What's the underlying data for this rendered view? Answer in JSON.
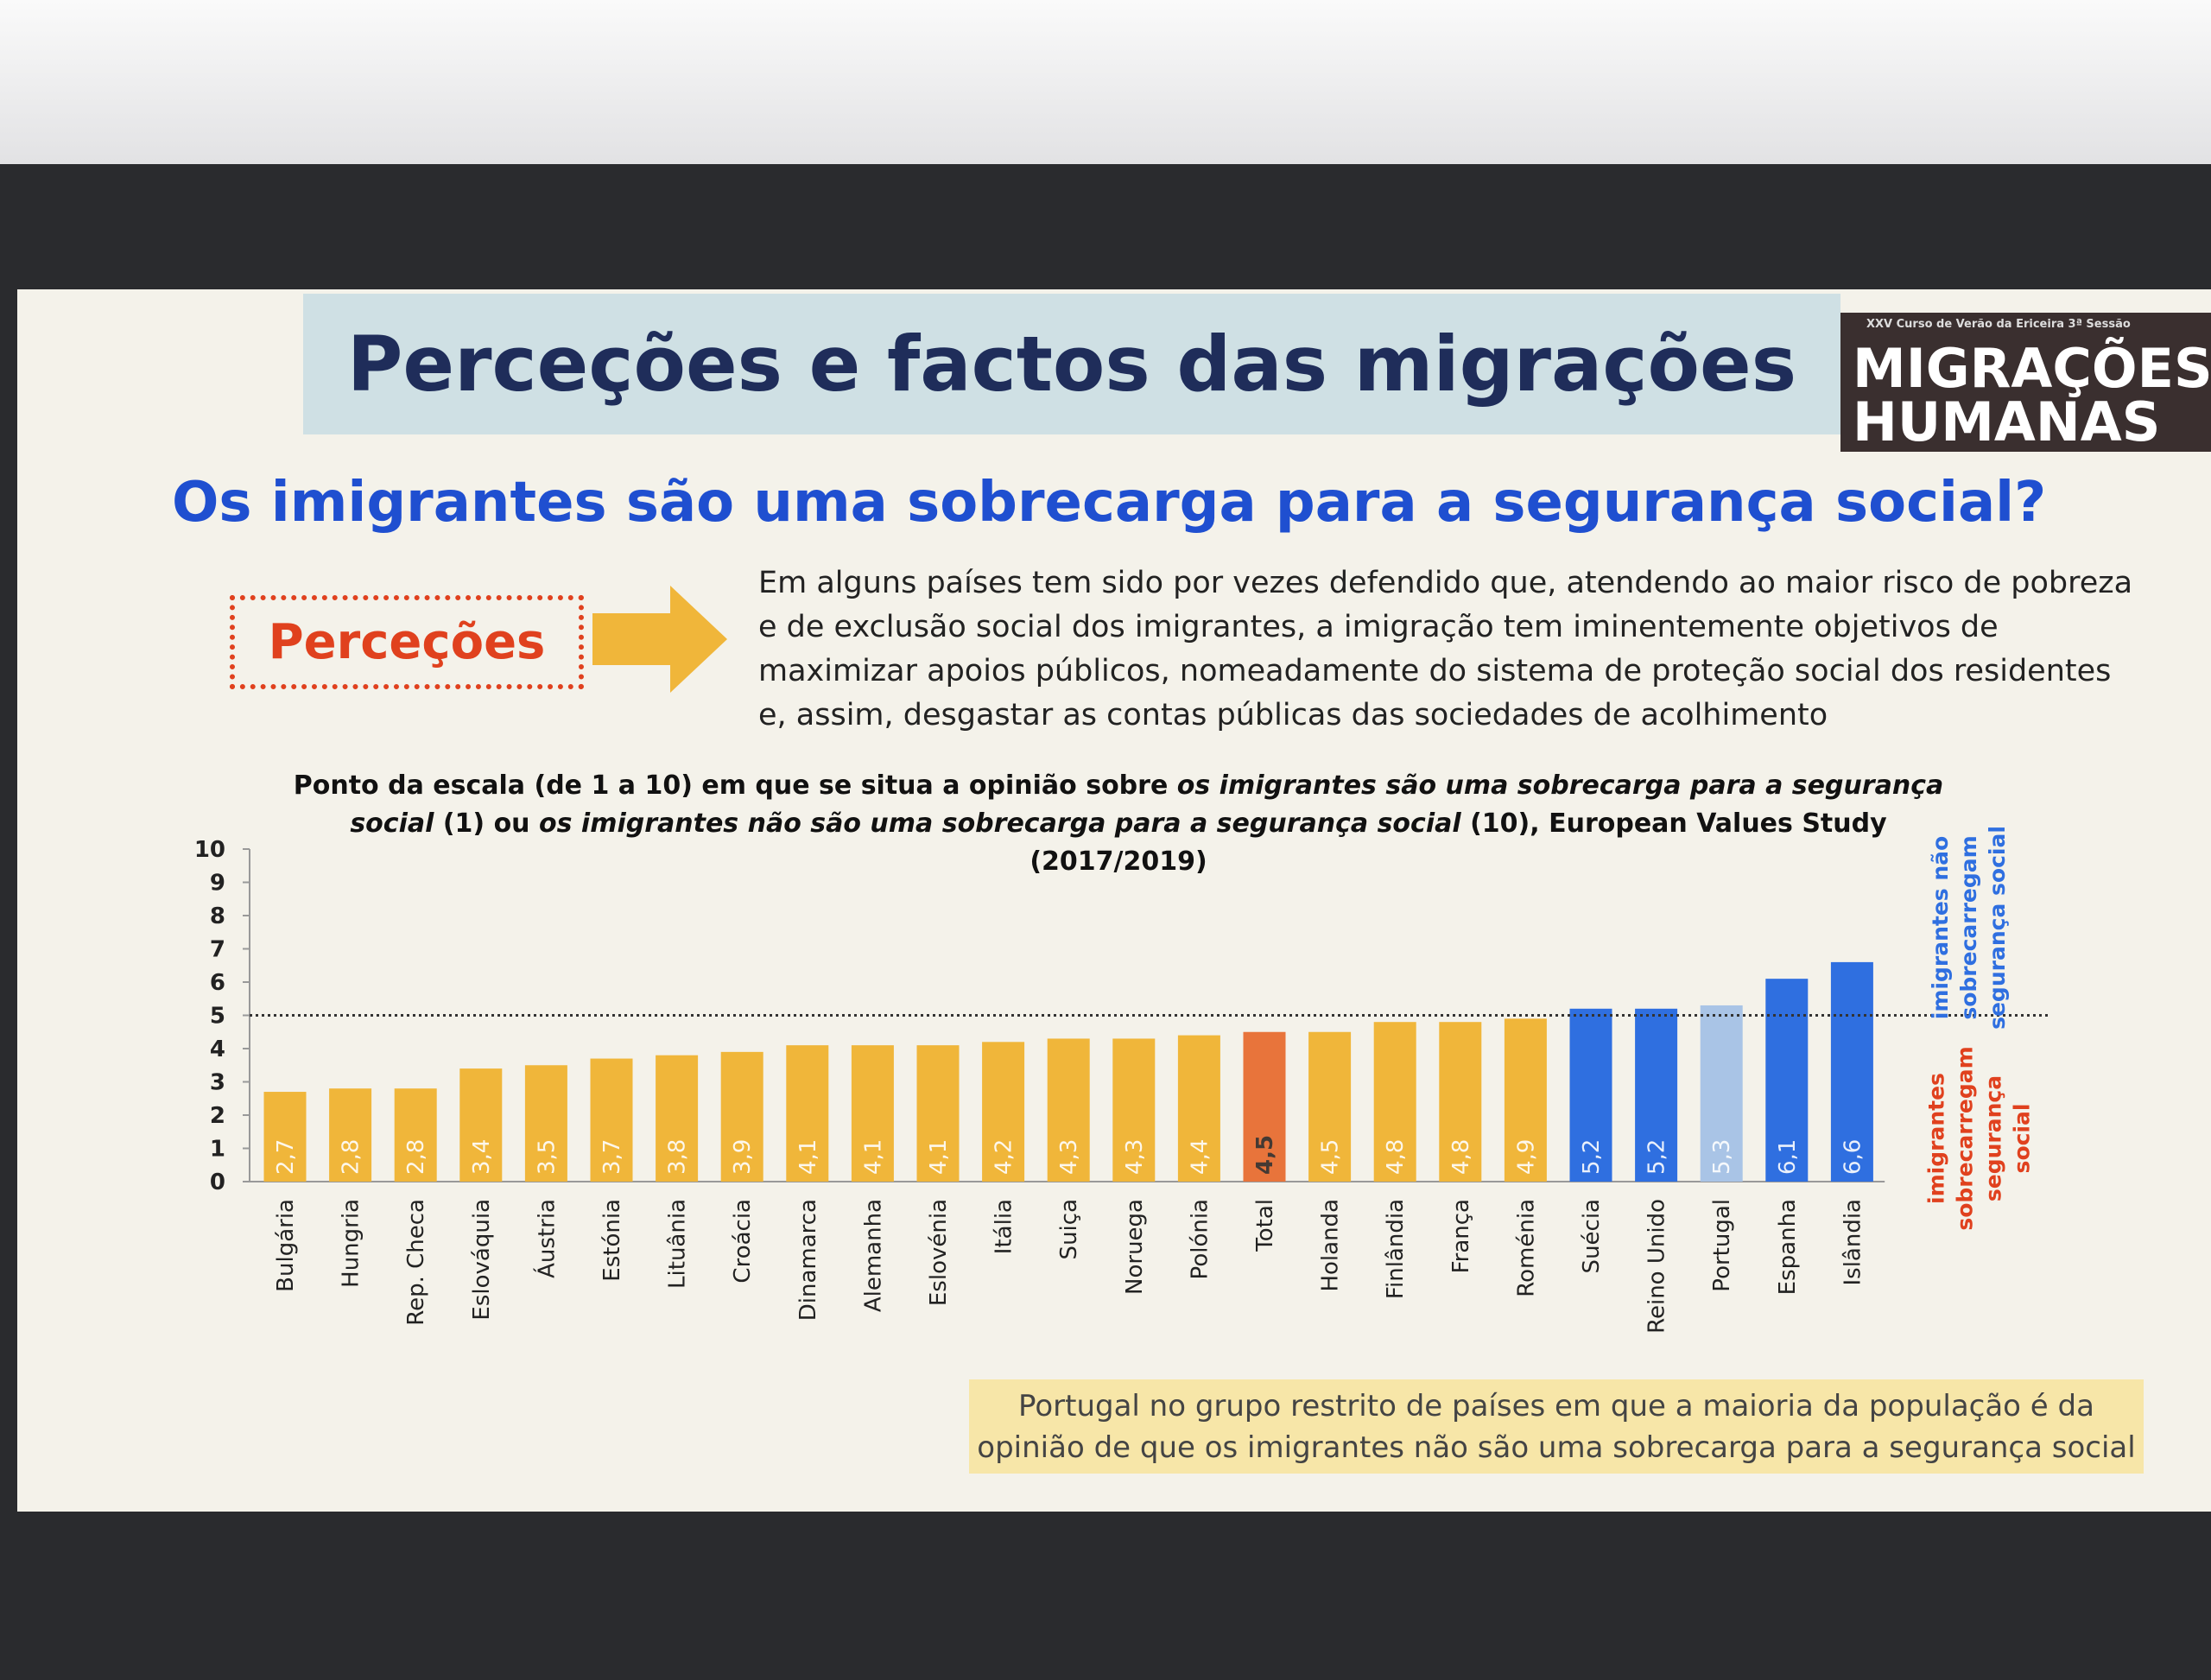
{
  "header": {
    "title": "Perceções e factos das migrações",
    "logo_small": "XXV Curso de Verão da Ericeira 3ª Sessão",
    "logo_line1": "MIGRAÇÕES",
    "logo_line2": "HUMANAS"
  },
  "subtitle": "Os imigrantes são uma sobrecarga para a segurança social?",
  "perception": {
    "label": "Perceções",
    "lines": [
      "Em alguns países tem sido por vezes defendido que, atendendo ao maior risco de pobreza",
      "e de exclusão social dos imigrantes, a imigração tem iminentemente objetivos de",
      "maximizar apoios públicos, nomeadamente do sistema de proteção social dos residentes",
      "e, assim, desgastar as contas públicas das sociedades de acolhimento"
    ]
  },
  "chart_data": {
    "type": "bar",
    "title": [
      "Ponto da escala (de 1 a 10) em que se situa a opinião sobre ",
      "os imigrantes são uma sobrecarga para a segurança",
      "social",
      " (1) ou ",
      "os imigrantes não são uma sobrecarga para a segurança social",
      " (10), European Values Study (2017/2019)"
    ],
    "categories": [
      "Bulgária",
      "Hungria",
      "Rep. Checa",
      "Eslováquia",
      "Áustria",
      "Estónia",
      "Lituânia",
      "Croácia",
      "Dinamarca",
      "Alemanha",
      "Eslovénia",
      "Itália",
      "Suiça",
      "Noruega",
      "Polónia",
      "Total",
      "Holanda",
      "Finlândia",
      "França",
      "Roménia",
      "Suécia",
      "Reino Unido",
      "Portugal",
      "Espanha",
      "Islândia"
    ],
    "values": [
      2.7,
      2.8,
      2.8,
      3.4,
      3.5,
      3.7,
      3.8,
      3.9,
      4.1,
      4.1,
      4.1,
      4.2,
      4.3,
      4.3,
      4.4,
      4.5,
      4.5,
      4.8,
      4.8,
      4.9,
      5.2,
      5.2,
      5.3,
      6.1,
      6.6
    ],
    "value_labels": [
      "2,7",
      "2,8",
      "2,8",
      "3,4",
      "3,5",
      "3,7",
      "3,8",
      "3,9",
      "4,1",
      "4,1",
      "4,1",
      "4,2",
      "4,3",
      "4,3",
      "4,4",
      "4,5",
      "4,5",
      "4,8",
      "4,8",
      "4,9",
      "5,2",
      "5,2",
      "5,3",
      "6,1",
      "6,6"
    ],
    "colors": [
      "#f0b63a",
      "#f0b63a",
      "#f0b63a",
      "#f0b63a",
      "#f0b63a",
      "#f0b63a",
      "#f0b63a",
      "#f0b63a",
      "#f0b63a",
      "#f0b63a",
      "#f0b63a",
      "#f0b63a",
      "#f0b63a",
      "#f0b63a",
      "#f0b63a",
      "#e8743b",
      "#f0b63a",
      "#f0b63a",
      "#f0b63a",
      "#f0b63a",
      "#2f6fe0",
      "#2f6fe0",
      "#a9c4e6",
      "#2f6fe0",
      "#2f6fe0"
    ],
    "ylim": [
      0,
      10
    ],
    "yticks": [
      0,
      1,
      2,
      3,
      4,
      5,
      6,
      7,
      8,
      9,
      10
    ],
    "reference_line": 5,
    "upper_label": [
      "imigrantes não",
      "sobrecarregam",
      "segurança social"
    ],
    "lower_label": [
      "imigrantes",
      "sobrecarregam",
      "segurança",
      "social"
    ]
  },
  "note": [
    "Portugal no grupo restrito de países em que a maioria da população é da",
    "opinião de que os imigrantes não são uma sobrecarga para a segurança social"
  ]
}
